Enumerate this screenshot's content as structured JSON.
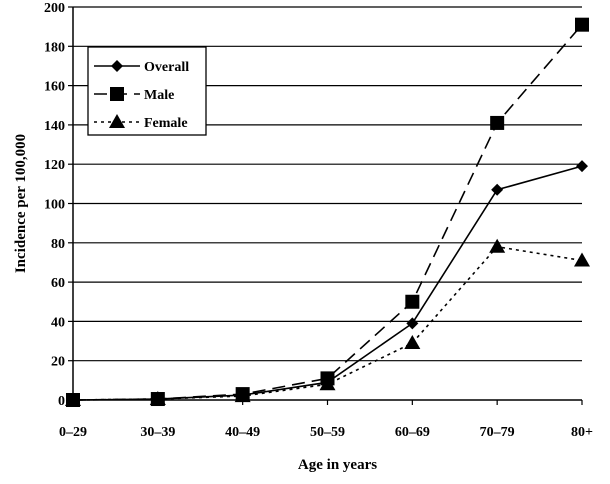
{
  "chart_data": {
    "type": "line",
    "title": "",
    "xlabel": "Age in years",
    "ylabel": "Incidence per 100,000",
    "categories": [
      "0–29",
      "30–39",
      "40–49",
      "50–59",
      "60–69",
      "70–79",
      "80+"
    ],
    "ylim": [
      0,
      200
    ],
    "yticks": [
      0,
      20,
      40,
      60,
      80,
      100,
      120,
      140,
      160,
      180,
      200
    ],
    "grid": true,
    "legend": "top-left",
    "series": [
      {
        "name": "Overall",
        "values": [
          0,
          0.5,
          2.5,
          9,
          39,
          107,
          119
        ],
        "marker": "diamond",
        "dash": "solid"
      },
      {
        "name": "Male",
        "values": [
          0,
          0.5,
          3,
          11,
          50,
          141,
          191
        ],
        "marker": "square",
        "dash": "long-dash"
      },
      {
        "name": "Female",
        "values": [
          0,
          0.5,
          2,
          8,
          29,
          78,
          71
        ],
        "marker": "triangle",
        "dash": "dotted"
      }
    ]
  }
}
